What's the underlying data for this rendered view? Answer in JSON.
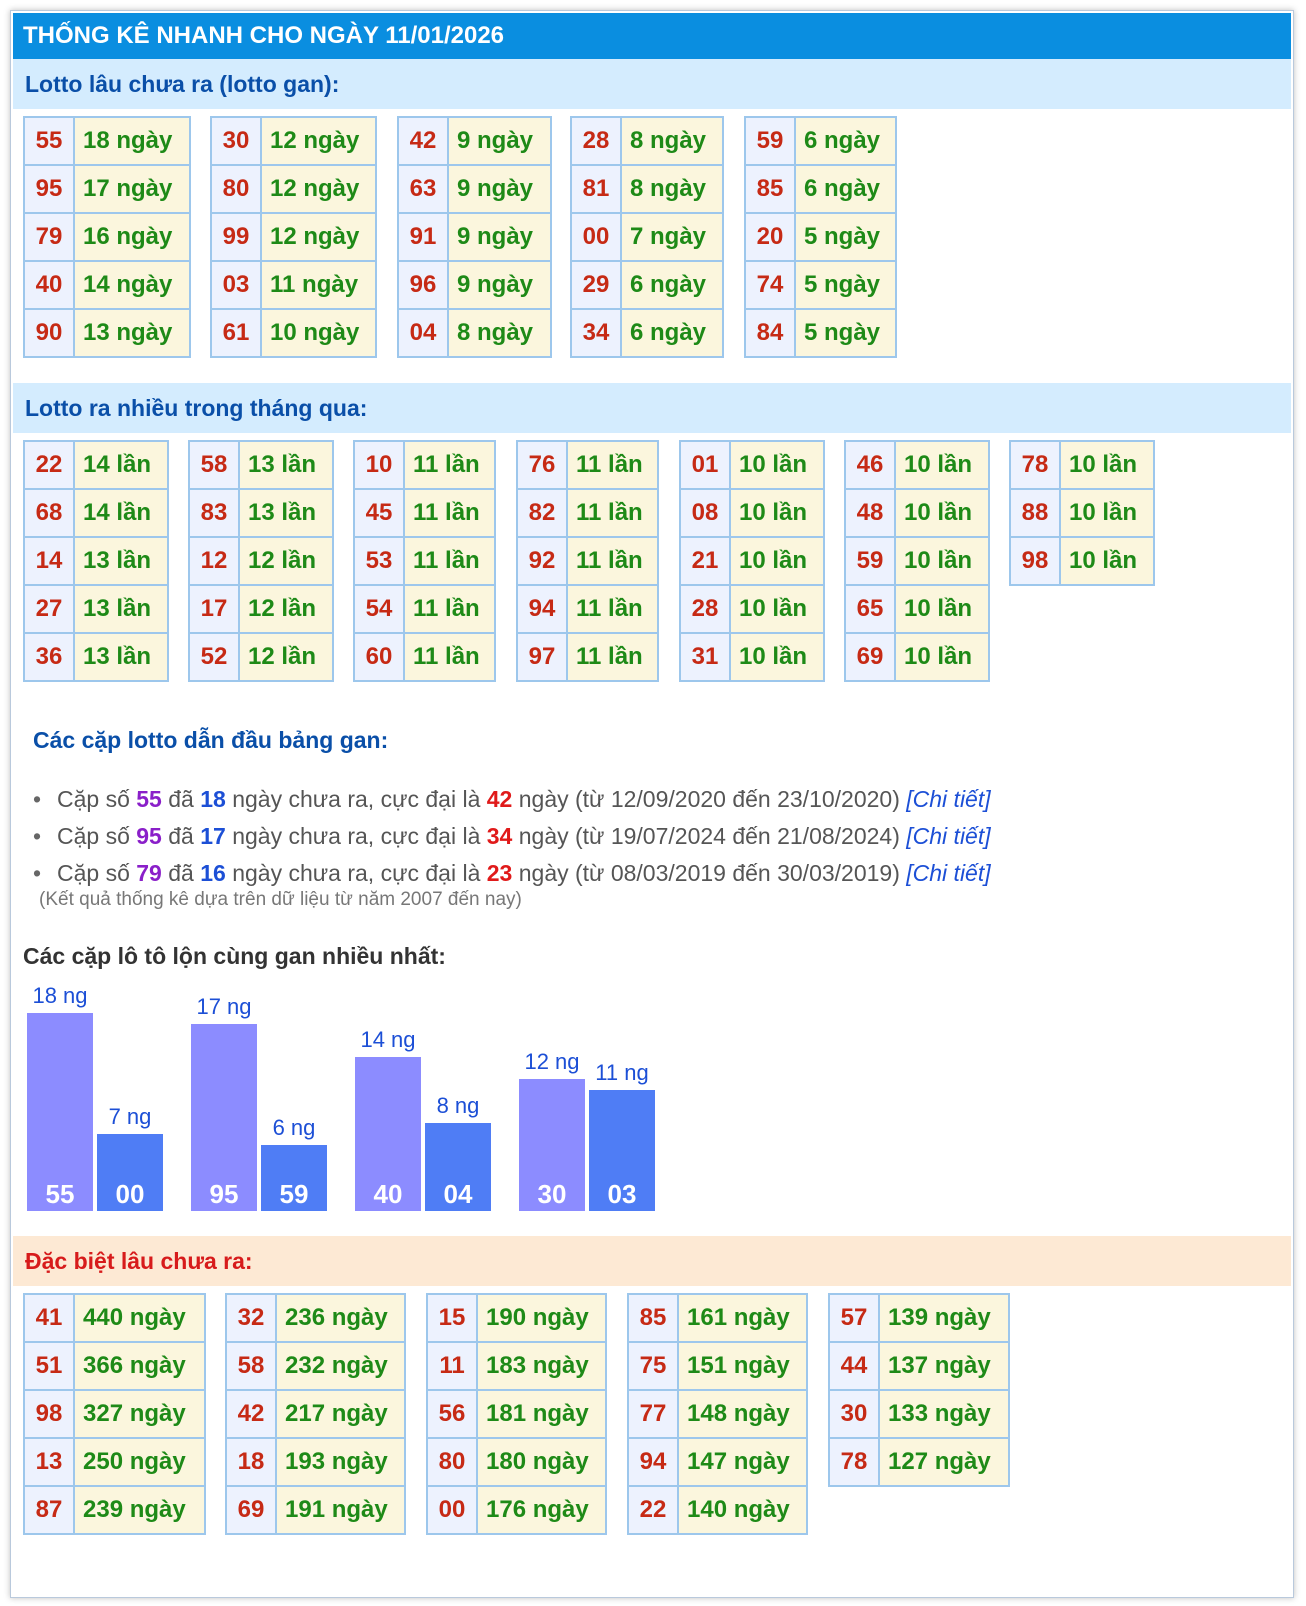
{
  "title": "THỐNG KÊ NHANH CHO NGÀY 11/01/2026",
  "gan": {
    "heading": "Lotto lâu chưa ra (lotto gan):",
    "columns": [
      [
        [
          "55",
          "18 ngày"
        ],
        [
          "95",
          "17 ngày"
        ],
        [
          "79",
          "16 ngày"
        ],
        [
          "40",
          "14 ngày"
        ],
        [
          "90",
          "13 ngày"
        ]
      ],
      [
        [
          "30",
          "12 ngày"
        ],
        [
          "80",
          "12 ngày"
        ],
        [
          "99",
          "12 ngày"
        ],
        [
          "03",
          "11 ngày"
        ],
        [
          "61",
          "10 ngày"
        ]
      ],
      [
        [
          "42",
          "9 ngày"
        ],
        [
          "63",
          "9 ngày"
        ],
        [
          "91",
          "9 ngày"
        ],
        [
          "96",
          "9 ngày"
        ],
        [
          "04",
          "8 ngày"
        ]
      ],
      [
        [
          "28",
          "8 ngày"
        ],
        [
          "81",
          "8 ngày"
        ],
        [
          "00",
          "7 ngày"
        ],
        [
          "29",
          "6 ngày"
        ],
        [
          "34",
          "6 ngày"
        ]
      ],
      [
        [
          "59",
          "6 ngày"
        ],
        [
          "85",
          "6 ngày"
        ],
        [
          "20",
          "5 ngày"
        ],
        [
          "74",
          "5 ngày"
        ],
        [
          "84",
          "5 ngày"
        ]
      ]
    ]
  },
  "frequent": {
    "heading": "Lotto ra nhiều trong tháng qua:",
    "columns": [
      [
        [
          "22",
          "14 lần"
        ],
        [
          "68",
          "14 lần"
        ],
        [
          "14",
          "13 lần"
        ],
        [
          "27",
          "13 lần"
        ],
        [
          "36",
          "13 lần"
        ]
      ],
      [
        [
          "58",
          "13 lần"
        ],
        [
          "83",
          "13 lần"
        ],
        [
          "12",
          "12 lần"
        ],
        [
          "17",
          "12 lần"
        ],
        [
          "52",
          "12 lần"
        ]
      ],
      [
        [
          "10",
          "11 lần"
        ],
        [
          "45",
          "11 lần"
        ],
        [
          "53",
          "11 lần"
        ],
        [
          "54",
          "11 lần"
        ],
        [
          "60",
          "11 lần"
        ]
      ],
      [
        [
          "76",
          "11 lần"
        ],
        [
          "82",
          "11 lần"
        ],
        [
          "92",
          "11 lần"
        ],
        [
          "94",
          "11 lần"
        ],
        [
          "97",
          "11 lần"
        ]
      ],
      [
        [
          "01",
          "10 lần"
        ],
        [
          "08",
          "10 lần"
        ],
        [
          "21",
          "10 lần"
        ],
        [
          "28",
          "10 lần"
        ],
        [
          "31",
          "10 lần"
        ]
      ],
      [
        [
          "46",
          "10 lần"
        ],
        [
          "48",
          "10 lần"
        ],
        [
          "59",
          "10 lần"
        ],
        [
          "65",
          "10 lần"
        ],
        [
          "69",
          "10 lần"
        ]
      ],
      [
        [
          "78",
          "10 lần"
        ],
        [
          "88",
          "10 lần"
        ],
        [
          "98",
          "10 lần"
        ]
      ]
    ]
  },
  "pairs": {
    "heading": "Các cặp lotto dẫn đầu bảng gan:",
    "items": [
      {
        "p1": "Cặp số ",
        "num": "55",
        "p2": " đã ",
        "days": "18",
        "p3": " ngày chưa ra, cực đại là ",
        "max": "42",
        "p4": " ngày (từ 12/09/2020 đến 23/10/2020) ",
        "link": "[Chi tiết]"
      },
      {
        "p1": "Cặp số ",
        "num": "95",
        "p2": " đã ",
        "days": "17",
        "p3": " ngày chưa ra, cực đại là ",
        "max": "34",
        "p4": " ngày (từ 19/07/2024 đến 21/08/2024) ",
        "link": "[Chi tiết]"
      },
      {
        "p1": "Cặp số ",
        "num": "79",
        "p2": " đã ",
        "days": "16",
        "p3": " ngày chưa ra, cực đại là ",
        "max": "23",
        "p4": " ngày (từ 08/03/2019 đến 30/03/2019) ",
        "link": "[Chi tiết]"
      }
    ],
    "note": "(Kết quả thống kê dựa trên dữ liệu từ năm 2007 đến nay)"
  },
  "chart_heading": "Các cặp lô tô lộn cùng gan nhiều nhất:",
  "chart_data": {
    "type": "bar",
    "groups": [
      {
        "bars": [
          {
            "label": "55",
            "value": 18,
            "text": "18 ng"
          },
          {
            "label": "00",
            "value": 7,
            "text": "7 ng"
          }
        ]
      },
      {
        "bars": [
          {
            "label": "95",
            "value": 17,
            "text": "17 ng"
          },
          {
            "label": "59",
            "value": 6,
            "text": "6 ng"
          }
        ]
      },
      {
        "bars": [
          {
            "label": "40",
            "value": 14,
            "text": "14 ng"
          },
          {
            "label": "04",
            "value": 8,
            "text": "8 ng"
          }
        ]
      },
      {
        "bars": [
          {
            "label": "30",
            "value": 12,
            "text": "12 ng"
          },
          {
            "label": "03",
            "value": 11,
            "text": "11 ng"
          }
        ]
      }
    ],
    "colors": [
      "#8c8cff",
      "#4f7df5"
    ]
  },
  "special": {
    "heading": "Đặc biệt lâu chưa ra:",
    "columns": [
      [
        [
          "41",
          "440 ngày"
        ],
        [
          "51",
          "366 ngày"
        ],
        [
          "98",
          "327 ngày"
        ],
        [
          "13",
          "250 ngày"
        ],
        [
          "87",
          "239 ngày"
        ]
      ],
      [
        [
          "32",
          "236 ngày"
        ],
        [
          "58",
          "232 ngày"
        ],
        [
          "42",
          "217 ngày"
        ],
        [
          "18",
          "193 ngày"
        ],
        [
          "69",
          "191 ngày"
        ]
      ],
      [
        [
          "15",
          "190 ngày"
        ],
        [
          "11",
          "183 ngày"
        ],
        [
          "56",
          "181 ngày"
        ],
        [
          "80",
          "180 ngày"
        ],
        [
          "00",
          "176 ngày"
        ]
      ],
      [
        [
          "85",
          "161 ngày"
        ],
        [
          "75",
          "151 ngày"
        ],
        [
          "77",
          "148 ngày"
        ],
        [
          "94",
          "147 ngày"
        ],
        [
          "22",
          "140 ngày"
        ]
      ],
      [
        [
          "57",
          "139 ngày"
        ],
        [
          "44",
          "137 ngày"
        ],
        [
          "30",
          "133 ngày"
        ],
        [
          "78",
          "127 ngày"
        ]
      ]
    ]
  }
}
